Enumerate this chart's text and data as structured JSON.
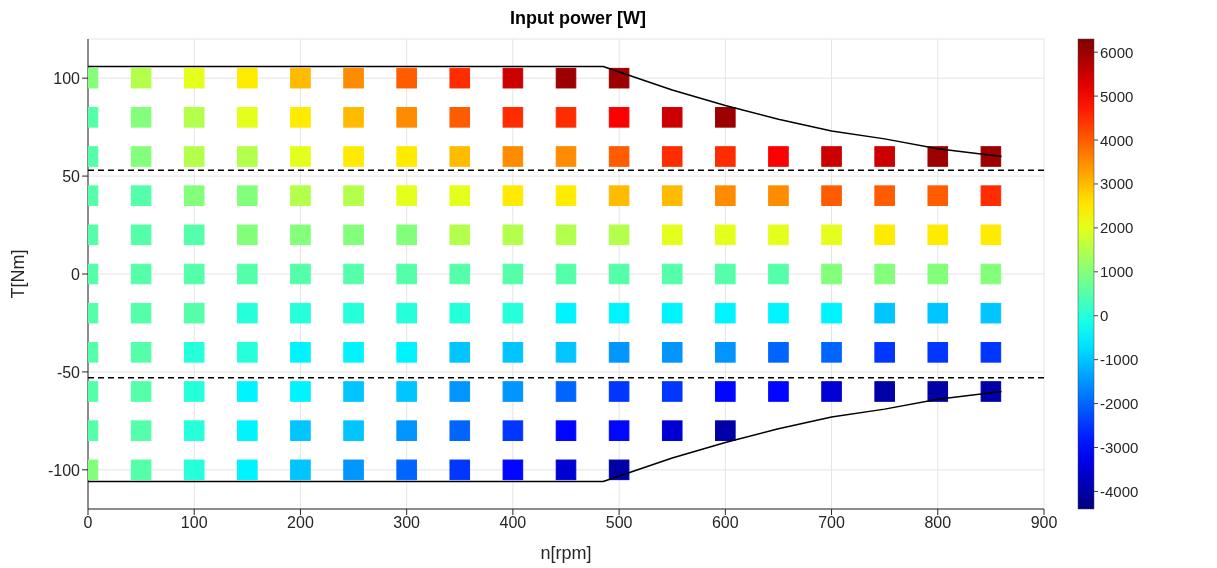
{
  "chart_data": {
    "type": "scatter",
    "title": "Input power [W]",
    "xlabel": "n[rpm]",
    "ylabel": "T[Nm]",
    "marker": "square",
    "xlim": [
      0,
      900
    ],
    "xticks": [
      0,
      100,
      200,
      300,
      400,
      500,
      600,
      700,
      800,
      900
    ],
    "ylim": [
      -120,
      120
    ],
    "yticks": [
      -100,
      -50,
      0,
      50,
      100
    ],
    "grid": true,
    "clim": [
      -4400,
      6300
    ],
    "cticks": [
      -4000,
      -3000,
      -2000,
      -1000,
      0,
      1000,
      2000,
      3000,
      4000,
      5000,
      6000
    ],
    "ref_lines": [
      {
        "axis": "y",
        "value": 53,
        "color": "#000000",
        "line_style": "dashed"
      },
      {
        "axis": "y",
        "value": -53,
        "color": "#000000",
        "line_style": "dashed"
      }
    ],
    "series": [
      {
        "x": [
          0,
          0,
          0,
          0,
          0,
          0,
          0,
          0,
          0,
          0,
          0
        ],
        "values": [
          100,
          80,
          60,
          40,
          20,
          0,
          -20,
          -40,
          -60,
          -80,
          -100
        ],
        "cvalues": [
          1000,
          500,
          500,
          500,
          500,
          500,
          500,
          500,
          500,
          500,
          1000
        ],
        "colors": [
          "#84ff7b",
          "#55ffaa",
          "#55ffaa",
          "#55ffaa",
          "#55ffaa",
          "#55ffaa",
          "#55ffaa",
          "#55ffaa",
          "#55ffaa",
          "#55ffaa",
          "#84ff7b"
        ]
      },
      {
        "x": [
          50,
          50,
          50,
          50,
          50,
          50,
          50,
          50,
          50,
          50,
          50
        ],
        "values": [
          100,
          80,
          60,
          40,
          20,
          0,
          -20,
          -40,
          -60,
          -80,
          -100
        ],
        "cvalues": [
          1500,
          1000,
          1000,
          500,
          500,
          500,
          500,
          500,
          500,
          500,
          500
        ],
        "colors": [
          "#b4ff4b",
          "#84ff7b",
          "#84ff7b",
          "#55ffaa",
          "#55ffaa",
          "#55ffaa",
          "#55ffaa",
          "#55ffaa",
          "#55ffaa",
          "#55ffaa",
          "#55ffaa"
        ]
      },
      {
        "x": [
          100,
          100,
          100,
          100,
          100,
          100,
          100,
          100,
          100,
          100,
          100
        ],
        "values": [
          100,
          80,
          60,
          40,
          20,
          0,
          -20,
          -40,
          -60,
          -80,
          -100
        ],
        "cvalues": [
          2000,
          1500,
          1500,
          1000,
          500,
          500,
          500,
          0,
          0,
          0,
          0
        ],
        "colors": [
          "#e4ff1b",
          "#b4ff4b",
          "#b4ff4b",
          "#84ff7b",
          "#55ffaa",
          "#55ffaa",
          "#55ffaa",
          "#25ffda",
          "#25ffda",
          "#25ffda",
          "#25ffda"
        ]
      },
      {
        "x": [
          150,
          150,
          150,
          150,
          150,
          150,
          150,
          150,
          150,
          150,
          150
        ],
        "values": [
          100,
          80,
          60,
          40,
          20,
          0,
          -20,
          -40,
          -60,
          -80,
          -100
        ],
        "cvalues": [
          2500,
          2000,
          1500,
          1000,
          1000,
          500,
          0,
          0,
          -500,
          -500,
          -500
        ],
        "colors": [
          "#ffeb00",
          "#e4ff1b",
          "#b4ff4b",
          "#84ff7b",
          "#84ff7b",
          "#55ffaa",
          "#25ffda",
          "#25ffda",
          "#00f4ff",
          "#00f4ff",
          "#00f4ff"
        ]
      },
      {
        "x": [
          200,
          200,
          200,
          200,
          200,
          200,
          200,
          200,
          200,
          200,
          200
        ],
        "values": [
          100,
          80,
          60,
          40,
          20,
          0,
          -20,
          -40,
          -60,
          -80,
          -100
        ],
        "cvalues": [
          3000,
          2500,
          2000,
          1500,
          1000,
          500,
          0,
          -500,
          -500,
          -1000,
          -1000
        ],
        "colors": [
          "#ffbb00",
          "#ffeb00",
          "#e4ff1b",
          "#b4ff4b",
          "#84ff7b",
          "#55ffaa",
          "#25ffda",
          "#00f4ff",
          "#00f4ff",
          "#00c5ff",
          "#00c5ff"
        ]
      },
      {
        "x": [
          250,
          250,
          250,
          250,
          250,
          250,
          250,
          250,
          250,
          250,
          250
        ],
        "values": [
          100,
          80,
          60,
          40,
          20,
          0,
          -20,
          -40,
          -60,
          -80,
          -100
        ],
        "cvalues": [
          3500,
          3000,
          2500,
          1500,
          1000,
          500,
          0,
          -500,
          -1000,
          -1000,
          -1500
        ],
        "colors": [
          "#ff8b00",
          "#ffbb00",
          "#ffeb00",
          "#b4ff4b",
          "#84ff7b",
          "#55ffaa",
          "#25ffda",
          "#00f4ff",
          "#00c5ff",
          "#00c5ff",
          "#0095ff"
        ]
      },
      {
        "x": [
          300,
          300,
          300,
          300,
          300,
          300,
          300,
          300,
          300,
          300,
          300
        ],
        "values": [
          100,
          80,
          60,
          40,
          20,
          0,
          -20,
          -40,
          -60,
          -80,
          -100
        ],
        "cvalues": [
          4000,
          3500,
          2500,
          2000,
          1000,
          500,
          0,
          -500,
          -1000,
          -1500,
          -2000
        ],
        "colors": [
          "#ff5c00",
          "#ff8b00",
          "#ffeb00",
          "#e4ff1b",
          "#84ff7b",
          "#55ffaa",
          "#25ffda",
          "#00f4ff",
          "#00c5ff",
          "#0095ff",
          "#0065ff"
        ]
      },
      {
        "x": [
          350,
          350,
          350,
          350,
          350,
          350,
          350,
          350,
          350,
          350,
          350
        ],
        "values": [
          100,
          80,
          60,
          40,
          20,
          0,
          -20,
          -40,
          -60,
          -80,
          -100
        ],
        "cvalues": [
          4500,
          4000,
          3000,
          2000,
          1500,
          500,
          0,
          -1000,
          -1500,
          -2000,
          -2500
        ],
        "colors": [
          "#ff2c00",
          "#ff5c00",
          "#ffbb00",
          "#e4ff1b",
          "#b4ff4b",
          "#55ffaa",
          "#25ffda",
          "#00c5ff",
          "#0095ff",
          "#0065ff",
          "#0036ff"
        ]
      },
      {
        "x": [
          400,
          400,
          400,
          400,
          400,
          400,
          400,
          400,
          400,
          400,
          400
        ],
        "values": [
          100,
          80,
          60,
          40,
          20,
          0,
          -20,
          -40,
          -60,
          -80,
          -100
        ],
        "cvalues": [
          5500,
          4500,
          3500,
          2500,
          1500,
          500,
          0,
          -1000,
          -1500,
          -2500,
          -3000
        ],
        "colors": [
          "#cc0000",
          "#ff2c00",
          "#ff8b00",
          "#ffeb00",
          "#b4ff4b",
          "#55ffaa",
          "#25ffda",
          "#00c5ff",
          "#0095ff",
          "#0036ff",
          "#0006ff"
        ]
      },
      {
        "x": [
          450,
          450,
          450,
          450,
          450,
          450,
          450,
          450,
          450,
          450,
          450
        ],
        "values": [
          100,
          80,
          60,
          40,
          20,
          0,
          -20,
          -40,
          -60,
          -80,
          -100
        ],
        "cvalues": [
          6000,
          4500,
          3500,
          2500,
          1500,
          500,
          -500,
          -1000,
          -2000,
          -3000,
          -3500
        ],
        "colors": [
          "#9c0000",
          "#ff2c00",
          "#ff8b00",
          "#ffeb00",
          "#b4ff4b",
          "#55ffaa",
          "#00f4ff",
          "#00c5ff",
          "#0065ff",
          "#0006ff",
          "#0000d5"
        ]
      },
      {
        "x": [
          500,
          500,
          500,
          500,
          500,
          500,
          500,
          500,
          500,
          500,
          500
        ],
        "values": [
          100,
          80,
          60,
          40,
          20,
          0,
          -20,
          -40,
          -60,
          -80,
          -100
        ],
        "cvalues": [
          6000,
          5000,
          4000,
          3000,
          1500,
          500,
          -500,
          -1500,
          -2500,
          -3000,
          -4000
        ],
        "colors": [
          "#9c0000",
          "#fb0000",
          "#ff5c00",
          "#ffbb00",
          "#b4ff4b",
          "#55ffaa",
          "#00f4ff",
          "#0095ff",
          "#0036ff",
          "#0006ff",
          "#0000a6"
        ]
      },
      {
        "x": [
          550,
          550,
          550,
          550,
          550,
          550,
          550,
          550,
          550
        ],
        "values": [
          80,
          60,
          40,
          20,
          0,
          -20,
          -40,
          -60,
          -80
        ],
        "cvalues": [
          5500,
          4500,
          3000,
          2000,
          500,
          -500,
          -1500,
          -2500,
          -3500
        ],
        "colors": [
          "#cc0000",
          "#ff2c00",
          "#ffbb00",
          "#e4ff1b",
          "#55ffaa",
          "#00f4ff",
          "#0095ff",
          "#0036ff",
          "#0000d5"
        ]
      },
      {
        "x": [
          600,
          600,
          600,
          600,
          600,
          600,
          600,
          600,
          600
        ],
        "values": [
          80,
          60,
          40,
          20,
          0,
          -20,
          -40,
          -60,
          -80
        ],
        "cvalues": [
          6000,
          4500,
          3500,
          2000,
          500,
          -500,
          -1500,
          -3000,
          -4000
        ],
        "colors": [
          "#9c0000",
          "#ff2c00",
          "#ff8b00",
          "#e4ff1b",
          "#55ffaa",
          "#00f4ff",
          "#0095ff",
          "#0006ff",
          "#0000a6"
        ]
      },
      {
        "x": [
          650,
          650,
          650,
          650,
          650,
          650,
          650
        ],
        "values": [
          60,
          40,
          20,
          0,
          -20,
          -40,
          -60
        ],
        "cvalues": [
          5000,
          3500,
          2000,
          500,
          -500,
          -2000,
          -3000
        ],
        "colors": [
          "#fb0000",
          "#ff8b00",
          "#e4ff1b",
          "#55ffaa",
          "#00f4ff",
          "#0065ff",
          "#0006ff"
        ]
      },
      {
        "x": [
          700,
          700,
          700,
          700,
          700,
          700,
          700
        ],
        "values": [
          60,
          40,
          20,
          0,
          -20,
          -40,
          -60
        ],
        "cvalues": [
          5500,
          4000,
          2000,
          1000,
          -500,
          -2000,
          -3500
        ],
        "colors": [
          "#cc0000",
          "#ff5c00",
          "#e4ff1b",
          "#84ff7b",
          "#00f4ff",
          "#0065ff",
          "#0000d5"
        ]
      },
      {
        "x": [
          750,
          750,
          750,
          750,
          750,
          750,
          750
        ],
        "values": [
          60,
          40,
          20,
          0,
          -20,
          -40,
          -60
        ],
        "cvalues": [
          5500,
          4000,
          2500,
          1000,
          -1000,
          -2500,
          -4000
        ],
        "colors": [
          "#cc0000",
          "#ff5c00",
          "#ffeb00",
          "#84ff7b",
          "#00c5ff",
          "#0036ff",
          "#0000a6"
        ]
      },
      {
        "x": [
          800,
          800,
          800,
          800,
          800,
          800,
          800
        ],
        "values": [
          60,
          40,
          20,
          0,
          -20,
          -40,
          -60
        ],
        "cvalues": [
          6000,
          4000,
          2500,
          1000,
          -1000,
          -2500,
          -4000
        ],
        "colors": [
          "#9c0000",
          "#ff5c00",
          "#ffeb00",
          "#84ff7b",
          "#00c5ff",
          "#0036ff",
          "#0000a6"
        ]
      },
      {
        "x": [
          850,
          850,
          850,
          850,
          850,
          850,
          850
        ],
        "values": [
          60,
          40,
          20,
          0,
          -20,
          -40,
          -60
        ],
        "cvalues": [
          6000,
          4500,
          2500,
          1000,
          -1000,
          -2500,
          -4000
        ],
        "colors": [
          "#9c0000",
          "#ff2c00",
          "#ffeb00",
          "#84ff7b",
          "#00c5ff",
          "#0036ff",
          "#0000a6"
        ]
      },
      {
        "type": "line",
        "color": "#000000",
        "line_style": "solid",
        "marker": "none",
        "x": [
          0,
          485,
          550,
          600,
          650,
          700,
          750,
          800,
          860
        ],
        "values": [
          106,
          106,
          94,
          86,
          79,
          73,
          69,
          64,
          60
        ]
      },
      {
        "type": "line",
        "color": "#000000",
        "line_style": "solid",
        "marker": "none",
        "x": [
          0,
          485,
          550,
          600,
          650,
          700,
          750,
          800,
          860
        ],
        "values": [
          -106,
          -106,
          -94,
          -86,
          -79,
          -73,
          -69,
          -64,
          -60
        ]
      }
    ]
  }
}
